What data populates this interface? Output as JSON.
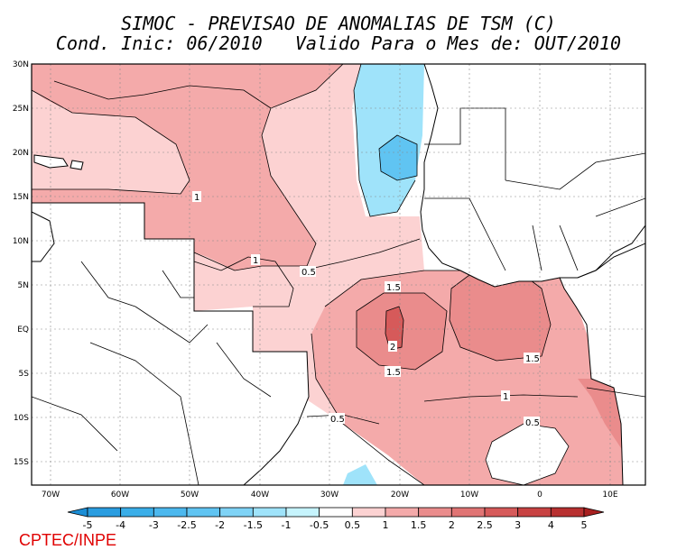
{
  "title_line1": "SIMOC - PREVISAO DE ANOMALIAS DE TSM (C)",
  "title_line2": "Cond. Inic: 06/2010   Valido Para o Mes de: OUT/2010",
  "lat_labels": [
    "30N",
    "25N",
    "20N",
    "15N",
    "10N",
    "5N",
    "EQ",
    "5S",
    "10S",
    "15S"
  ],
  "lon_labels": [
    "70W",
    "60W",
    "50W",
    "40W",
    "30W",
    "20W",
    "10W",
    "0",
    "10E"
  ],
  "contour_labels": [
    "1",
    "1",
    "0.5",
    "1.5",
    "2",
    "1.5",
    "1.5",
    "1",
    "0.5",
    "0.5"
  ],
  "colorbar": {
    "labels": [
      "-5",
      "-4",
      "-3",
      "-2.5",
      "-2",
      "-1.5",
      "-1",
      "-0.5",
      "0.5",
      "1",
      "1.5",
      "2",
      "2.5",
      "3",
      "4",
      "5"
    ],
    "colors": [
      "#1b8ed6",
      "#2a9de0",
      "#3aaee8",
      "#4cb8ee",
      "#60c4f2",
      "#7fd3f6",
      "#9fe3fa",
      "#c6f4fd",
      "#ffffff",
      "#fcd2d2",
      "#f4aaaa",
      "#ea8c8c",
      "#e07474",
      "#d65a5a",
      "#c84242",
      "#b83030",
      "#a82020"
    ]
  },
  "credit": "CPTEC/INPE"
}
